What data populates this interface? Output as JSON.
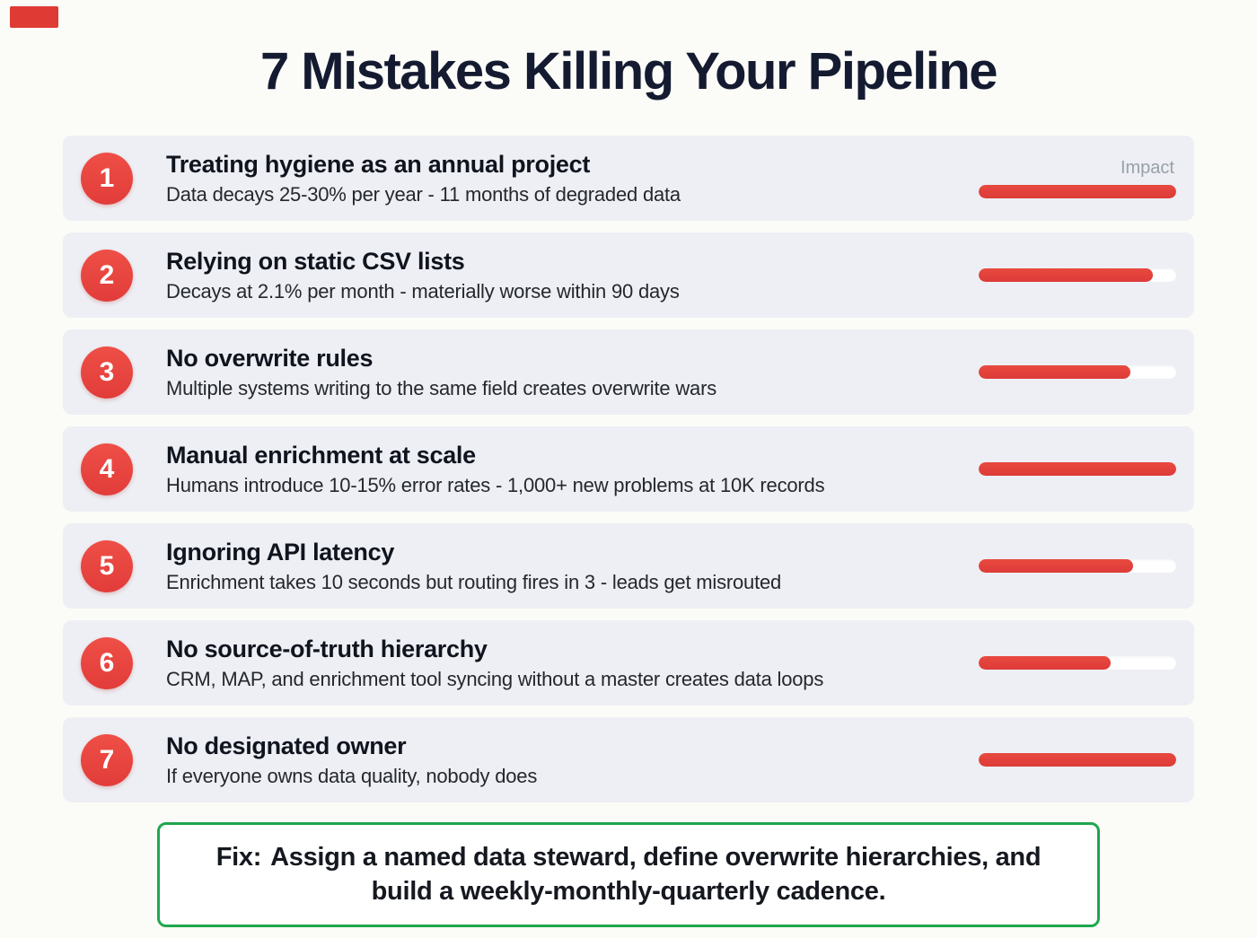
{
  "title": "7 Mistakes Killing Your Pipeline",
  "impact_label": "Impact",
  "items": [
    {
      "number": "1",
      "title": "Treating hygiene as an annual project",
      "description": "Data decays 25-30% per year - 11 months of degraded data",
      "impact_pct": 100
    },
    {
      "number": "2",
      "title": "Relying on static CSV lists",
      "description": "Decays at 2.1% per month - materially worse within 90 days",
      "impact_pct": 88
    },
    {
      "number": "3",
      "title": "No overwrite rules",
      "description": "Multiple systems writing to the same field creates overwrite wars",
      "impact_pct": 77
    },
    {
      "number": "4",
      "title": "Manual enrichment at scale",
      "description": "Humans introduce 10-15% error rates - 1,000+ new problems at 10K records",
      "impact_pct": 100
    },
    {
      "number": "5",
      "title": "Ignoring API latency",
      "description": "Enrichment takes 10 seconds but routing fires in 3 - leads get misrouted",
      "impact_pct": 78
    },
    {
      "number": "6",
      "title": "No source-of-truth hierarchy",
      "description": "CRM, MAP, and enrichment tool syncing without a master creates data loops",
      "impact_pct": 67
    },
    {
      "number": "7",
      "title": "No designated owner",
      "description": "If everyone owns data quality, nobody does",
      "impact_pct": 100
    }
  ],
  "fix": {
    "prefix": "Fix:",
    "text": "Assign a named data steward, define overwrite hierarchies, and build a weekly-monthly-quarterly cadence."
  },
  "colors": {
    "accent_red": "#e8453e",
    "row_bg": "#edeff4",
    "title_navy": "#141b31",
    "green_border": "#1ea74d",
    "impact_track": "#ffffff",
    "impact_label_gray": "#97a0aa"
  }
}
